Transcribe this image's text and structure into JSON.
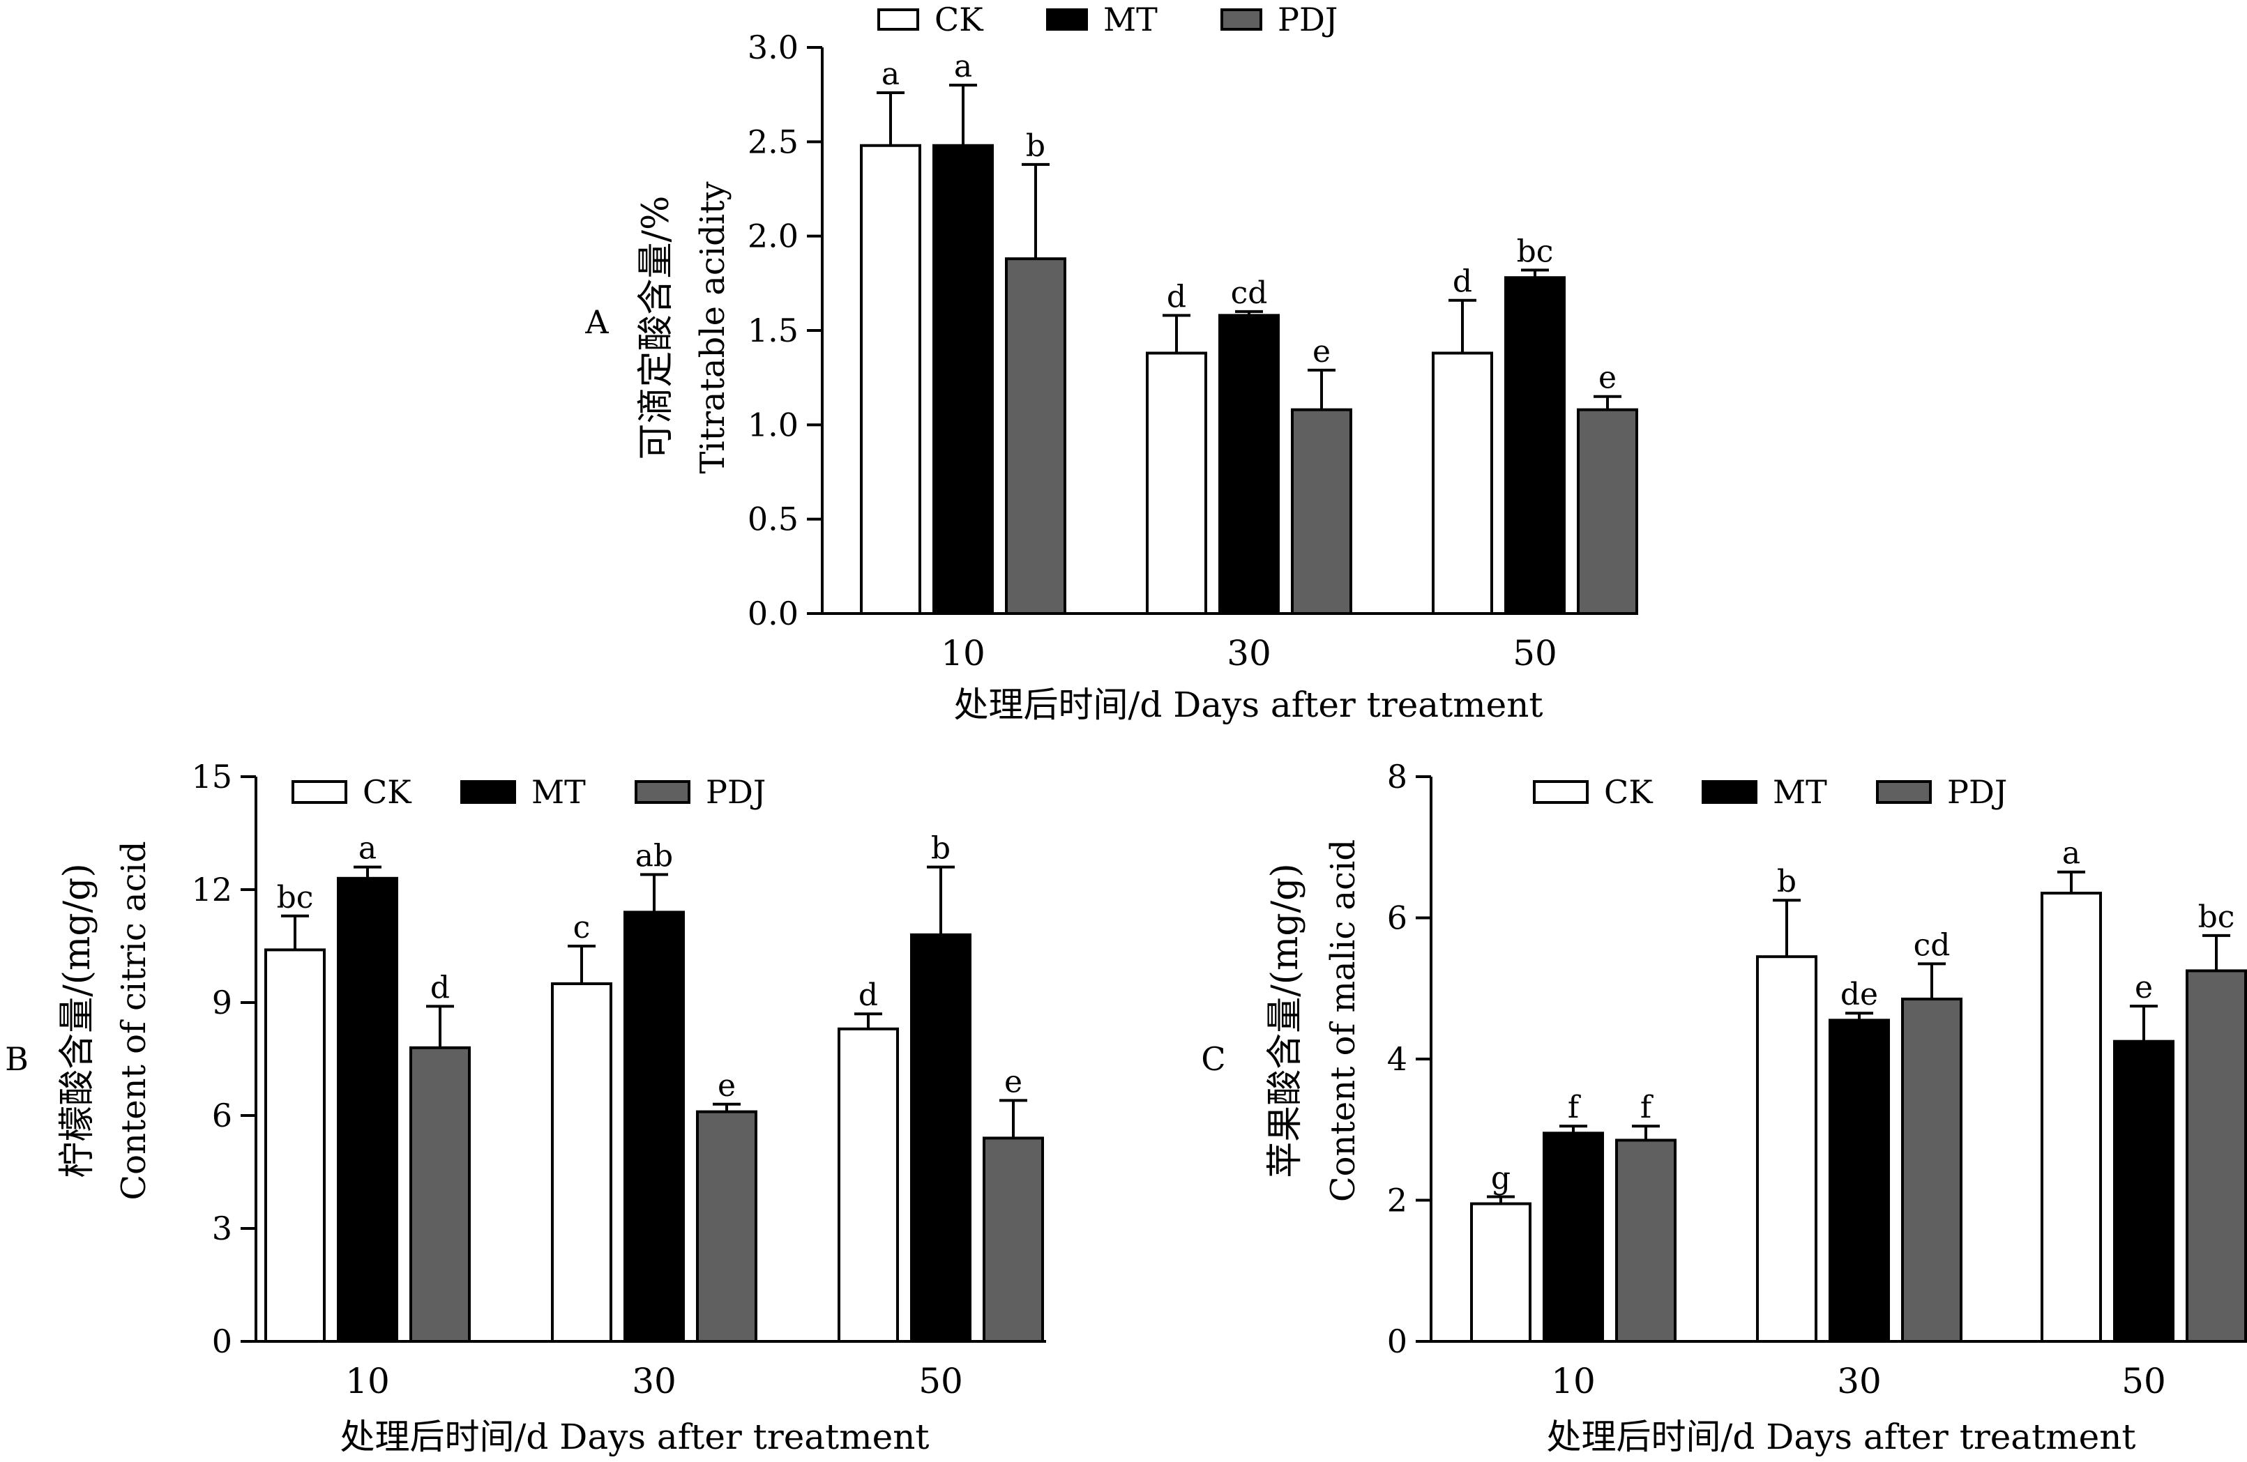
{
  "colors": {
    "CK": "#ffffff",
    "MT": "#000000",
    "PDJ": "#606060",
    "axis": "#000000"
  },
  "chart_data": [
    {
      "panel": "A",
      "type": "bar",
      "ylabel_cn": "可滴定酸含量/%",
      "ylabel_en": "Titratable acidity",
      "xlabel": "处理后时间/d Days after treatment",
      "categories": [
        "10",
        "30",
        "50"
      ],
      "ylim": [
        0,
        3.0
      ],
      "yticks": [
        "0.0",
        "0.5",
        "1.0",
        "1.5",
        "2.0",
        "2.5",
        "3.0"
      ],
      "legend": [
        "CK",
        "MT",
        "PDJ"
      ],
      "series": [
        {
          "name": "CK",
          "values": [
            2.48,
            1.38,
            1.38
          ],
          "errors": [
            0.28,
            0.2,
            0.28
          ],
          "letters": [
            "a",
            "d",
            "d"
          ]
        },
        {
          "name": "MT",
          "values": [
            2.48,
            1.58,
            1.78
          ],
          "errors": [
            0.32,
            0.02,
            0.04
          ],
          "letters": [
            "a",
            "cd",
            "bc"
          ]
        },
        {
          "name": "PDJ",
          "values": [
            1.88,
            1.08,
            1.08
          ],
          "errors": [
            0.5,
            0.21,
            0.07
          ],
          "letters": [
            "b",
            "e",
            "e"
          ]
        }
      ]
    },
    {
      "panel": "B",
      "type": "bar",
      "ylabel_cn": "柠檬酸含量/(mg/g)",
      "ylabel_en": "Content of citric acid",
      "xlabel": "处理后时间/d Days after treatment",
      "categories": [
        "10",
        "30",
        "50"
      ],
      "ylim": [
        0,
        15
      ],
      "yticks": [
        "0",
        "3",
        "6",
        "9",
        "12",
        "15"
      ],
      "legend": [
        "CK",
        "MT",
        "PDJ"
      ],
      "series": [
        {
          "name": "CK",
          "values": [
            10.4,
            9.5,
            8.3
          ],
          "errors": [
            0.9,
            1.0,
            0.4
          ],
          "letters": [
            "bc",
            "c",
            "d"
          ]
        },
        {
          "name": "MT",
          "values": [
            12.3,
            11.4,
            10.8
          ],
          "errors": [
            0.3,
            1.0,
            1.8
          ],
          "letters": [
            "a",
            "ab",
            "b"
          ]
        },
        {
          "name": "PDJ",
          "values": [
            7.8,
            6.1,
            5.4
          ],
          "errors": [
            1.1,
            0.2,
            1.0
          ],
          "letters": [
            "d",
            "e",
            "e"
          ]
        }
      ]
    },
    {
      "panel": "C",
      "type": "bar",
      "ylabel_cn": "苹果酸含量/(mg/g)",
      "ylabel_en": "Content of malic acid",
      "xlabel": "处理后时间/d Days after treatment",
      "categories": [
        "10",
        "30",
        "50"
      ],
      "ylim": [
        0,
        8
      ],
      "yticks": [
        "0",
        "2",
        "4",
        "6",
        "8"
      ],
      "legend": [
        "CK",
        "MT",
        "PDJ"
      ],
      "series": [
        {
          "name": "CK",
          "values": [
            1.95,
            5.45,
            6.35
          ],
          "errors": [
            0.1,
            0.8,
            0.3
          ],
          "letters": [
            "g",
            "b",
            "a"
          ]
        },
        {
          "name": "MT",
          "values": [
            2.95,
            4.55,
            4.25
          ],
          "errors": [
            0.1,
            0.1,
            0.5
          ],
          "letters": [
            "f",
            "de",
            "e"
          ]
        },
        {
          "name": "PDJ",
          "values": [
            2.85,
            4.85,
            5.25
          ],
          "errors": [
            0.2,
            0.5,
            0.5
          ],
          "letters": [
            "f",
            "cd",
            "bc"
          ]
        }
      ]
    }
  ]
}
